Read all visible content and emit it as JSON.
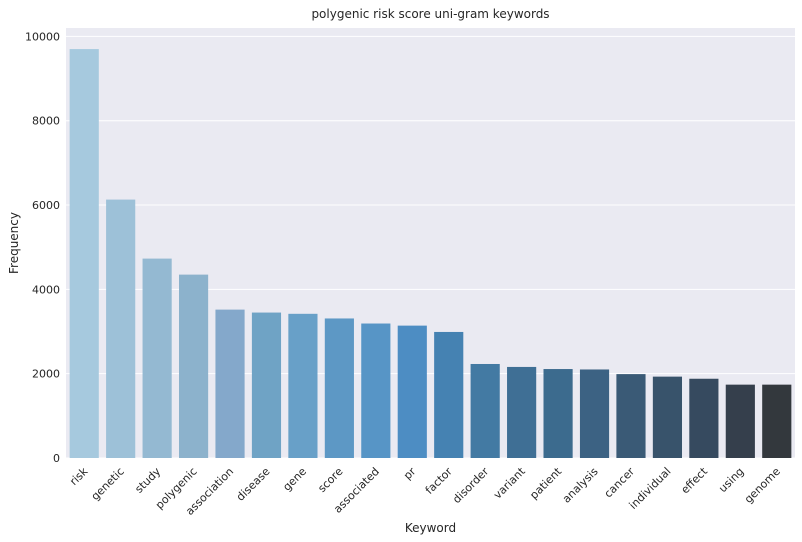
{
  "chart_data": {
    "type": "bar",
    "title": "polygenic risk score uni-gram keywords",
    "xlabel": "Keyword",
    "ylabel": "Frequency",
    "categories": [
      "risk",
      "genetic",
      "study",
      "polygenic",
      "association",
      "disease",
      "gene",
      "score",
      "associated",
      "pr",
      "factor",
      "disorder",
      "variant",
      "patient",
      "analysis",
      "cancer",
      "individual",
      "effect",
      "using",
      "genome"
    ],
    "values": [
      9700,
      6130,
      4730,
      4350,
      3520,
      3450,
      3420,
      3310,
      3190,
      3140,
      2990,
      2230,
      2160,
      2110,
      2100,
      1990,
      1930,
      1880,
      1740,
      1740
    ],
    "ylim": [
      0,
      10200
    ],
    "yticks": [
      0,
      2000,
      4000,
      6000,
      8000,
      10000
    ],
    "grid": true,
    "palette": "Blues_d",
    "colors": [
      "#a6c9de",
      "#9dc1d8",
      "#94b9d2",
      "#8cb2cc",
      "#84a8cb",
      "#6fa3c5",
      "#68a0c8",
      "#5d98c5",
      "#5795c6",
      "#4d8dc3",
      "#4582b2",
      "#437aa3",
      "#3f6f95",
      "#3c6b8e",
      "#3c6283",
      "#3a5a76",
      "#38536b",
      "#364a5f",
      "#353f4c",
      "#33383d"
    ],
    "background": "#eaeaf2",
    "grid_color": "#ffffff"
  }
}
